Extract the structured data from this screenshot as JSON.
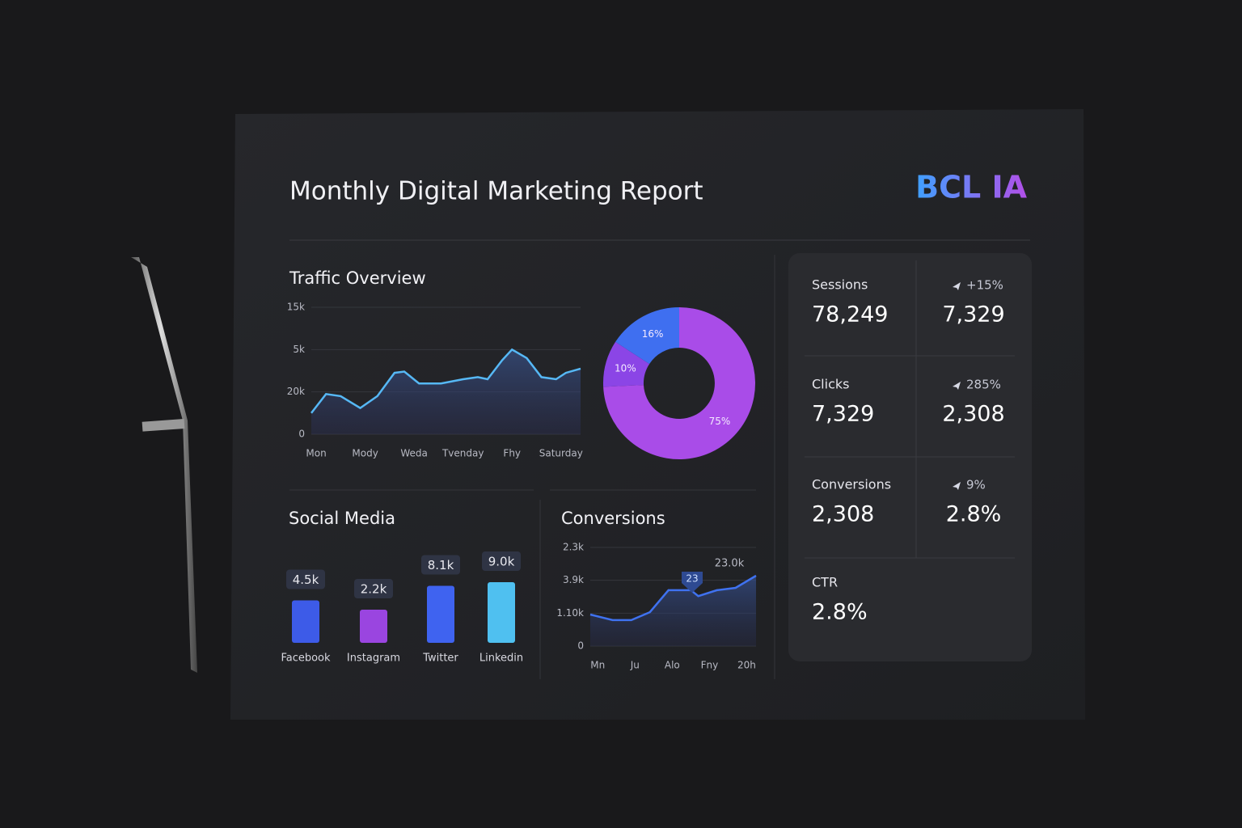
{
  "header": {
    "title": "Monthly Digital Marketing Report",
    "logo": "BCL IA"
  },
  "traffic": {
    "type": "line",
    "title": "Traffic Overview",
    "x": [
      -0.1,
      0.2,
      0.5,
      0.9,
      1.25,
      1.6,
      1.8,
      2.1,
      2.55,
      3.0,
      3.3,
      3.5,
      3.8,
      4.0,
      4.3,
      4.6,
      4.9,
      5.1,
      5.4
    ],
    "values": [
      0.5,
      0.95,
      0.9,
      0.62,
      0.9,
      1.45,
      1.48,
      1.2,
      1.2,
      1.3,
      1.35,
      1.3,
      1.75,
      2.0,
      1.8,
      1.35,
      1.3,
      1.45,
      1.55
    ],
    "xlim": [
      -0.1,
      5.4
    ],
    "ylim": [
      0,
      3
    ],
    "yticks": [
      0,
      {
        "value": 1,
        "label": "20k"
      },
      {
        "value": 2,
        "label": "5k"
      },
      {
        "value": 3,
        "label": "15k"
      }
    ],
    "xticks": [
      {
        "value": 0,
        "label": "Mon"
      },
      {
        "value": 1,
        "label": "Mody"
      },
      {
        "value": 2,
        "label": "Weda"
      },
      {
        "value": 3,
        "label": "Tvenday"
      },
      {
        "value": 4,
        "label": "Fhy"
      },
      {
        "value": 5,
        "label": "Saturday"
      }
    ],
    "color": "#56b8f5",
    "grid": true
  },
  "donut": {
    "type": "pie",
    "values": [
      75,
      10,
      16
    ],
    "value_labels": [
      "75%",
      "10%",
      "16%"
    ],
    "colors": [
      "#a94ce8",
      "#8b45e6",
      "#3f6ff0"
    ]
  },
  "social": {
    "type": "bar",
    "title": "Social Media",
    "categories": [
      "Facebook",
      "Instagram",
      "Twitter",
      "Linkedin"
    ],
    "values": [
      4.5,
      2.2,
      8.1,
      9.0
    ],
    "value_labels": [
      "4.5k",
      "2.2k",
      "8.1k",
      "9.0k"
    ],
    "colors": [
      "#3d5be8",
      "#9a45e0",
      "#3f63f0",
      "#4fc0f0"
    ]
  },
  "conversions": {
    "type": "line",
    "title": "Conversions",
    "x": [
      -0.2,
      0.4,
      0.9,
      1.4,
      1.9,
      2.5,
      2.7,
      3.2,
      3.7,
      4.25
    ],
    "values": [
      0.96,
      0.79,
      0.79,
      1.03,
      1.7,
      1.7,
      1.52,
      1.7,
      1.77,
      2.14
    ],
    "xlim": [
      -0.2,
      4.25
    ],
    "ylim": [
      0,
      3
    ],
    "yticks": [
      0,
      {
        "value": 1,
        "label": "1.10k"
      },
      {
        "value": 2,
        "label": "3.9k"
      },
      {
        "value": 3,
        "label": "2.3k"
      }
    ],
    "xticks": [
      {
        "value": 0,
        "label": "Mn"
      },
      {
        "value": 1,
        "label": "Ju"
      },
      {
        "value": 2,
        "label": "Alo"
      },
      {
        "value": 3,
        "label": "Fny"
      },
      {
        "value": 4,
        "label": "20h"
      }
    ],
    "annotations": [
      "23",
      "23.0k"
    ],
    "color": "#3f72f0",
    "grid": true
  },
  "kpis": [
    {
      "label": "Sessions",
      "value": "78,249",
      "change": "+15%",
      "change_value": "7,329"
    },
    {
      "label": "Clicks",
      "value": "7,329",
      "change": "285%",
      "change_value": "2,308"
    },
    {
      "label": "Conversions",
      "value": "2,308",
      "change": "9%",
      "change_value": "2.8%"
    },
    {
      "label": "CTR",
      "value": "2.8%"
    }
  ]
}
